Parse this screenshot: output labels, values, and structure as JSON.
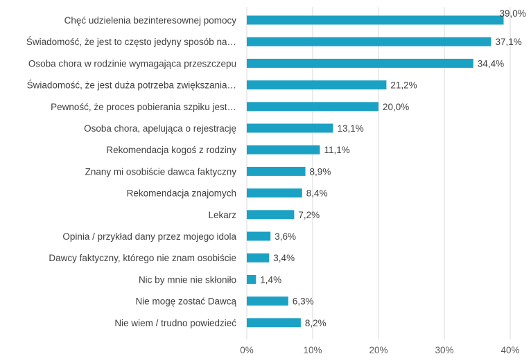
{
  "chart_data": {
    "type": "bar",
    "orientation": "horizontal",
    "categories": [
      "Chęć udzielenia bezinteresownej pomocy",
      "Świadomość, że jest to często jedyny sposób na…",
      "Osoba chora w rodzinie wymagająca przeszczepu",
      "Świadomość, że jest duża potrzeba zwiększania…",
      "Pewność, że proces pobierania szpiku jest…",
      "Osoba chora, apelująca o rejestrację",
      "Rekomendacja kogoś z rodziny",
      "Znany mi osobiście dawca faktyczny",
      "Rekomendacja znajomych",
      "Lekarz",
      "Opinia / przykład dany przez mojego idola",
      "Dawcy faktyczny, którego nie znam osobiście",
      "Nic by mnie nie skłoniło",
      "Nie mogę zostać Dawcą",
      "Nie wiem / trudno powiedzieć"
    ],
    "values": [
      39.0,
      37.1,
      34.4,
      21.2,
      20.0,
      13.1,
      11.1,
      8.9,
      8.4,
      7.2,
      3.6,
      3.4,
      1.4,
      6.3,
      8.2
    ],
    "value_labels": [
      "39,0%",
      "37,1%",
      "34,4%",
      "21,2%",
      "20,0%",
      "13,1%",
      "11,1%",
      "8,9%",
      "8,4%",
      "7,2%",
      "3,6%",
      "3,4%",
      "1,4%",
      "6,3%",
      "8,2%"
    ],
    "xlim": [
      0,
      40
    ],
    "xticks": [
      0,
      10,
      20,
      30,
      40
    ],
    "xtick_labels": [
      "0%",
      "10%",
      "20%",
      "30%",
      "40%"
    ],
    "grid": true,
    "legend": false,
    "bar_color": "#1ba1c4"
  }
}
